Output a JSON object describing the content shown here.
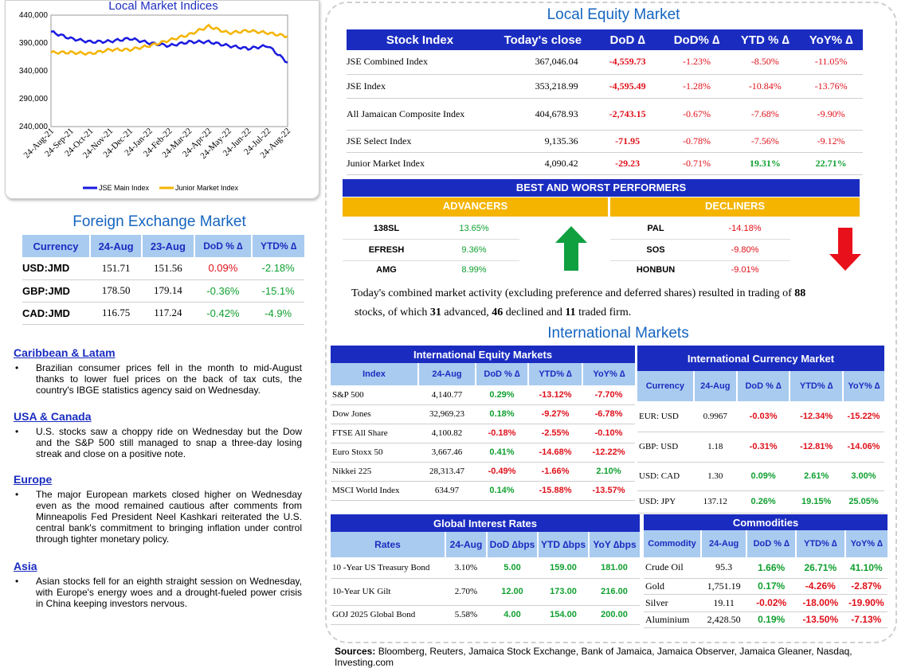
{
  "market_chart": {
    "title": "Local Market Indices",
    "y_ticks": [
      "440,000",
      "390,000",
      "340,000",
      "290,000",
      "240,000"
    ],
    "x_ticks": [
      "24-Aug-21",
      "24-Sep-21",
      "24-Oct-21",
      "24-Nov-21",
      "24-Dec-21",
      "24-Jan-22",
      "24-Feb-22",
      "24-Mar-22",
      "24-Apr-22",
      "24-May-22",
      "24-Jun-22",
      "24-Jul-22",
      "24-Aug-22"
    ],
    "legend": [
      "JSE Main Index",
      "Junior Market Index"
    ],
    "colors": {
      "jse": "#1a1ae0",
      "junior": "#f4b400"
    }
  },
  "chart_data": {
    "type": "line",
    "title": "Local Market Indices",
    "categories": [
      "24-Aug-21",
      "24-Sep-21",
      "24-Oct-21",
      "24-Nov-21",
      "24-Dec-21",
      "24-Jan-22",
      "24-Feb-22",
      "24-Mar-22",
      "24-Apr-22",
      "24-May-22",
      "24-Jun-22",
      "24-Jul-22",
      "24-Aug-22"
    ],
    "ylim": [
      240000,
      440000
    ],
    "series": [
      {
        "name": "JSE Main Index",
        "values": [
          410000,
          398000,
          392000,
          393000,
          398000,
          390000,
          385000,
          392000,
          392000,
          385000,
          380000,
          385000,
          355000
        ]
      },
      {
        "name": "Junior Market Index",
        "values": [
          373000,
          373000,
          371000,
          378000,
          378000,
          385000,
          395000,
          405000,
          420000,
          408000,
          412000,
          408000,
          402000
        ]
      }
    ]
  },
  "fx": {
    "title": "Foreign Exchange Market",
    "headers": [
      "Currency",
      "24-Aug",
      "23-Aug",
      "DoD % ∆",
      "YTD% ∆"
    ],
    "rows": [
      {
        "currency": "USD:JMD",
        "today": "151.71",
        "prev": "151.56",
        "dod": "0.09%",
        "ytd": "-2.18%"
      },
      {
        "currency": "GBP:JMD",
        "today": "178.50",
        "prev": "179.14",
        "dod": "-0.36%",
        "ytd": "-15.1%"
      },
      {
        "currency": "CAD:JMD",
        "today": "116.75",
        "prev": "117.24",
        "dod": "-0.42%",
        "ytd": "-4.9%"
      }
    ]
  },
  "news": [
    {
      "region": "Caribbean & Latam",
      "text": "Brazilian consumer prices fell in the month to mid-August thanks to lower fuel prices on the back of tax cuts, the country's IBGE statistics agency said on Wednesday."
    },
    {
      "region": "USA & Canada",
      "text": "U.S. stocks saw a choppy ride on Wednesday but the Dow and the S&P 500 still managed to snap a three-day losing streak and close on a positive note."
    },
    {
      "region": "Europe",
      "text": "The major European markets closed higher on Wednesday even as the mood remained cautious after comments from Minneapolis Fed President Neel Kashkari reiterated the U.S. central bank's commitment to bringing inflation under control through tighter monetary policy."
    },
    {
      "region": "Asia",
      "text": "Asian stocks fell for an eighth straight session on Wednesday, with Europe's energy woes and a drought-fueled power crisis in China keeping investors nervous."
    }
  ],
  "local_equity": {
    "title": "Local Equity Market",
    "headers": [
      "Stock Index",
      "Today's close",
      "DoD  ∆",
      "DoD% ∆",
      "YTD % ∆",
      "YoY% ∆"
    ],
    "rows": [
      {
        "name": "JSE Combined Index",
        "close": "367,046.04",
        "dod": "-4,559.73",
        "dodp": "-1.23%",
        "ytd": "-8.50%",
        "yoy": "-11.05%"
      },
      {
        "name": "JSE Index",
        "close": "353,218.99",
        "dod": "-4,595.49",
        "dodp": "-1.28%",
        "ytd": "-10.84%",
        "yoy": "-13.76%"
      },
      {
        "name": "All Jamaican Composite Index",
        "close": "404,678.93",
        "dod": "-2,743.15",
        "dodp": "-0.67%",
        "ytd": "-7.68%",
        "yoy": "-9.90%"
      },
      {
        "name": "JSE Select Index",
        "close": "9,135.36",
        "dod": "-71.95",
        "dodp": "-0.78%",
        "ytd": "-7.56%",
        "yoy": "-9.12%"
      },
      {
        "name": "Junior Market Index",
        "close": "4,090.42",
        "dod": "-29.23",
        "dodp": "-0.71%",
        "ytd": "19.31%",
        "yoy": "22.71%"
      }
    ]
  },
  "performers": {
    "title": "BEST AND WORST PERFORMERS",
    "advancers_label": "ADVANCERS",
    "decliners_label": "DECLINERS",
    "advancers": [
      {
        "sym": "138SL",
        "pct": "13.65%"
      },
      {
        "sym": "EFRESH",
        "pct": "9.36%"
      },
      {
        "sym": "AMG",
        "pct": "8.99%"
      }
    ],
    "decliners": [
      {
        "sym": "PAL",
        "pct": "-14.18%"
      },
      {
        "sym": "SOS",
        "pct": "-9.80%"
      },
      {
        "sym": "HONBUN",
        "pct": "-9.01%"
      }
    ],
    "summary": {
      "p1": "Today's combined market activity (excluding preference and deferred shares) resulted in trading of ",
      "total": "88",
      "p2": "stocks, of which ",
      "advanced": "31",
      "p3": " advanced, ",
      "declined": "46",
      "p4": " declined and ",
      "firm": "11",
      "p5": " traded firm."
    }
  },
  "international": {
    "title": "International Markets",
    "equity": {
      "title": "International Equity Markets",
      "headers": [
        "Index",
        "24-Aug",
        "DoD % ∆",
        "YTD% ∆",
        "YoY% ∆"
      ],
      "rows": [
        {
          "name": "S&P 500",
          "val": "4,140.77",
          "dod": "0.29%",
          "ytd": "-13.12%",
          "yoy": "-7.70%"
        },
        {
          "name": "Dow Jones",
          "val": "32,969.23",
          "dod": "0.18%",
          "ytd": "-9.27%",
          "yoy": "-6.78%"
        },
        {
          "name": "FTSE All Share",
          "val": "4,100.82",
          "dod": "-0.18%",
          "ytd": "-2.55%",
          "yoy": "-0.10%"
        },
        {
          "name": "Euro Stoxx 50",
          "val": "3,667.46",
          "dod": "0.41%",
          "ytd": "-14.68%",
          "yoy": "-12.22%"
        },
        {
          "name": "Nikkei 225",
          "val": "28,313.47",
          "dod": "-0.49%",
          "ytd": "-1.66%",
          "yoy": "2.10%"
        },
        {
          "name": "MSCI World Index",
          "val": "634.97",
          "dod": "0.14%",
          "ytd": "-15.88%",
          "yoy": "-13.57%"
        }
      ]
    },
    "currency": {
      "title": "International Currency Market",
      "headers": [
        "Currency",
        "24-Aug",
        "DoD % ∆",
        "YTD% ∆",
        "YoY% ∆"
      ],
      "rows": [
        {
          "name": "EUR: USD",
          "val": "0.9967",
          "dod": "-0.03%",
          "ytd": "-12.34%",
          "yoy": "-15.22%"
        },
        {
          "name": "GBP: USD",
          "val": "1.18",
          "dod": "-0.31%",
          "ytd": "-12.81%",
          "yoy": "-14.06%"
        },
        {
          "name": "USD: CAD",
          "val": "1.30",
          "dod": "0.09%",
          "ytd": "2.61%",
          "yoy": "3.00%"
        },
        {
          "name": "USD: JPY",
          "val": "137.12",
          "dod": "0.26%",
          "ytd": "19.15%",
          "yoy": "25.05%"
        }
      ]
    },
    "rates": {
      "title": "Global Interest Rates",
      "headers": [
        "Rates",
        "24-Aug",
        "DoD ∆bps",
        "YTD ∆bps",
        "YoY ∆bps"
      ],
      "rows": [
        {
          "name": "10 -Year US Treasury Bond",
          "val": "3.10%",
          "dod": "5.00",
          "ytd": "159.00",
          "yoy": "181.00"
        },
        {
          "name": "10-Year UK Gilt",
          "val": "2.70%",
          "dod": "12.00",
          "ytd": "173.00",
          "yoy": "216.00"
        },
        {
          "name": "GOJ 2025 Global Bond",
          "val": "5.58%",
          "dod": "4.00",
          "ytd": "154.00",
          "yoy": "200.00"
        }
      ]
    },
    "commodities": {
      "title": "Commodities",
      "headers": [
        "Commodity",
        "24-Aug",
        "DoD % ∆",
        "YTD% ∆",
        "YoY% ∆"
      ],
      "rows": [
        {
          "name": "Crude Oil",
          "val": "95.3",
          "dod": "1.66%",
          "ytd": "26.71%",
          "yoy": "41.10%"
        },
        {
          "name": "Gold",
          "val": "1,751.19",
          "dod": "0.17%",
          "ytd": "-4.26%",
          "yoy": "-2.87%"
        },
        {
          "name": "Silver",
          "val": "19.11",
          "dod": "-0.02%",
          "ytd": "-18.00%",
          "yoy": "-19.90%"
        },
        {
          "name": "Aluminium",
          "val": "2,428.50",
          "dod": "0.19%",
          "ytd": "-13.50%",
          "yoy": "-7.13%"
        }
      ]
    }
  },
  "sources": {
    "label": "Sources:",
    "text": " Bloomberg, Reuters, Jamaica Stock Exchange, Bank of Jamaica, Jamaica Observer, Jamaica Gleaner, Nasdaq, Investing.com"
  }
}
